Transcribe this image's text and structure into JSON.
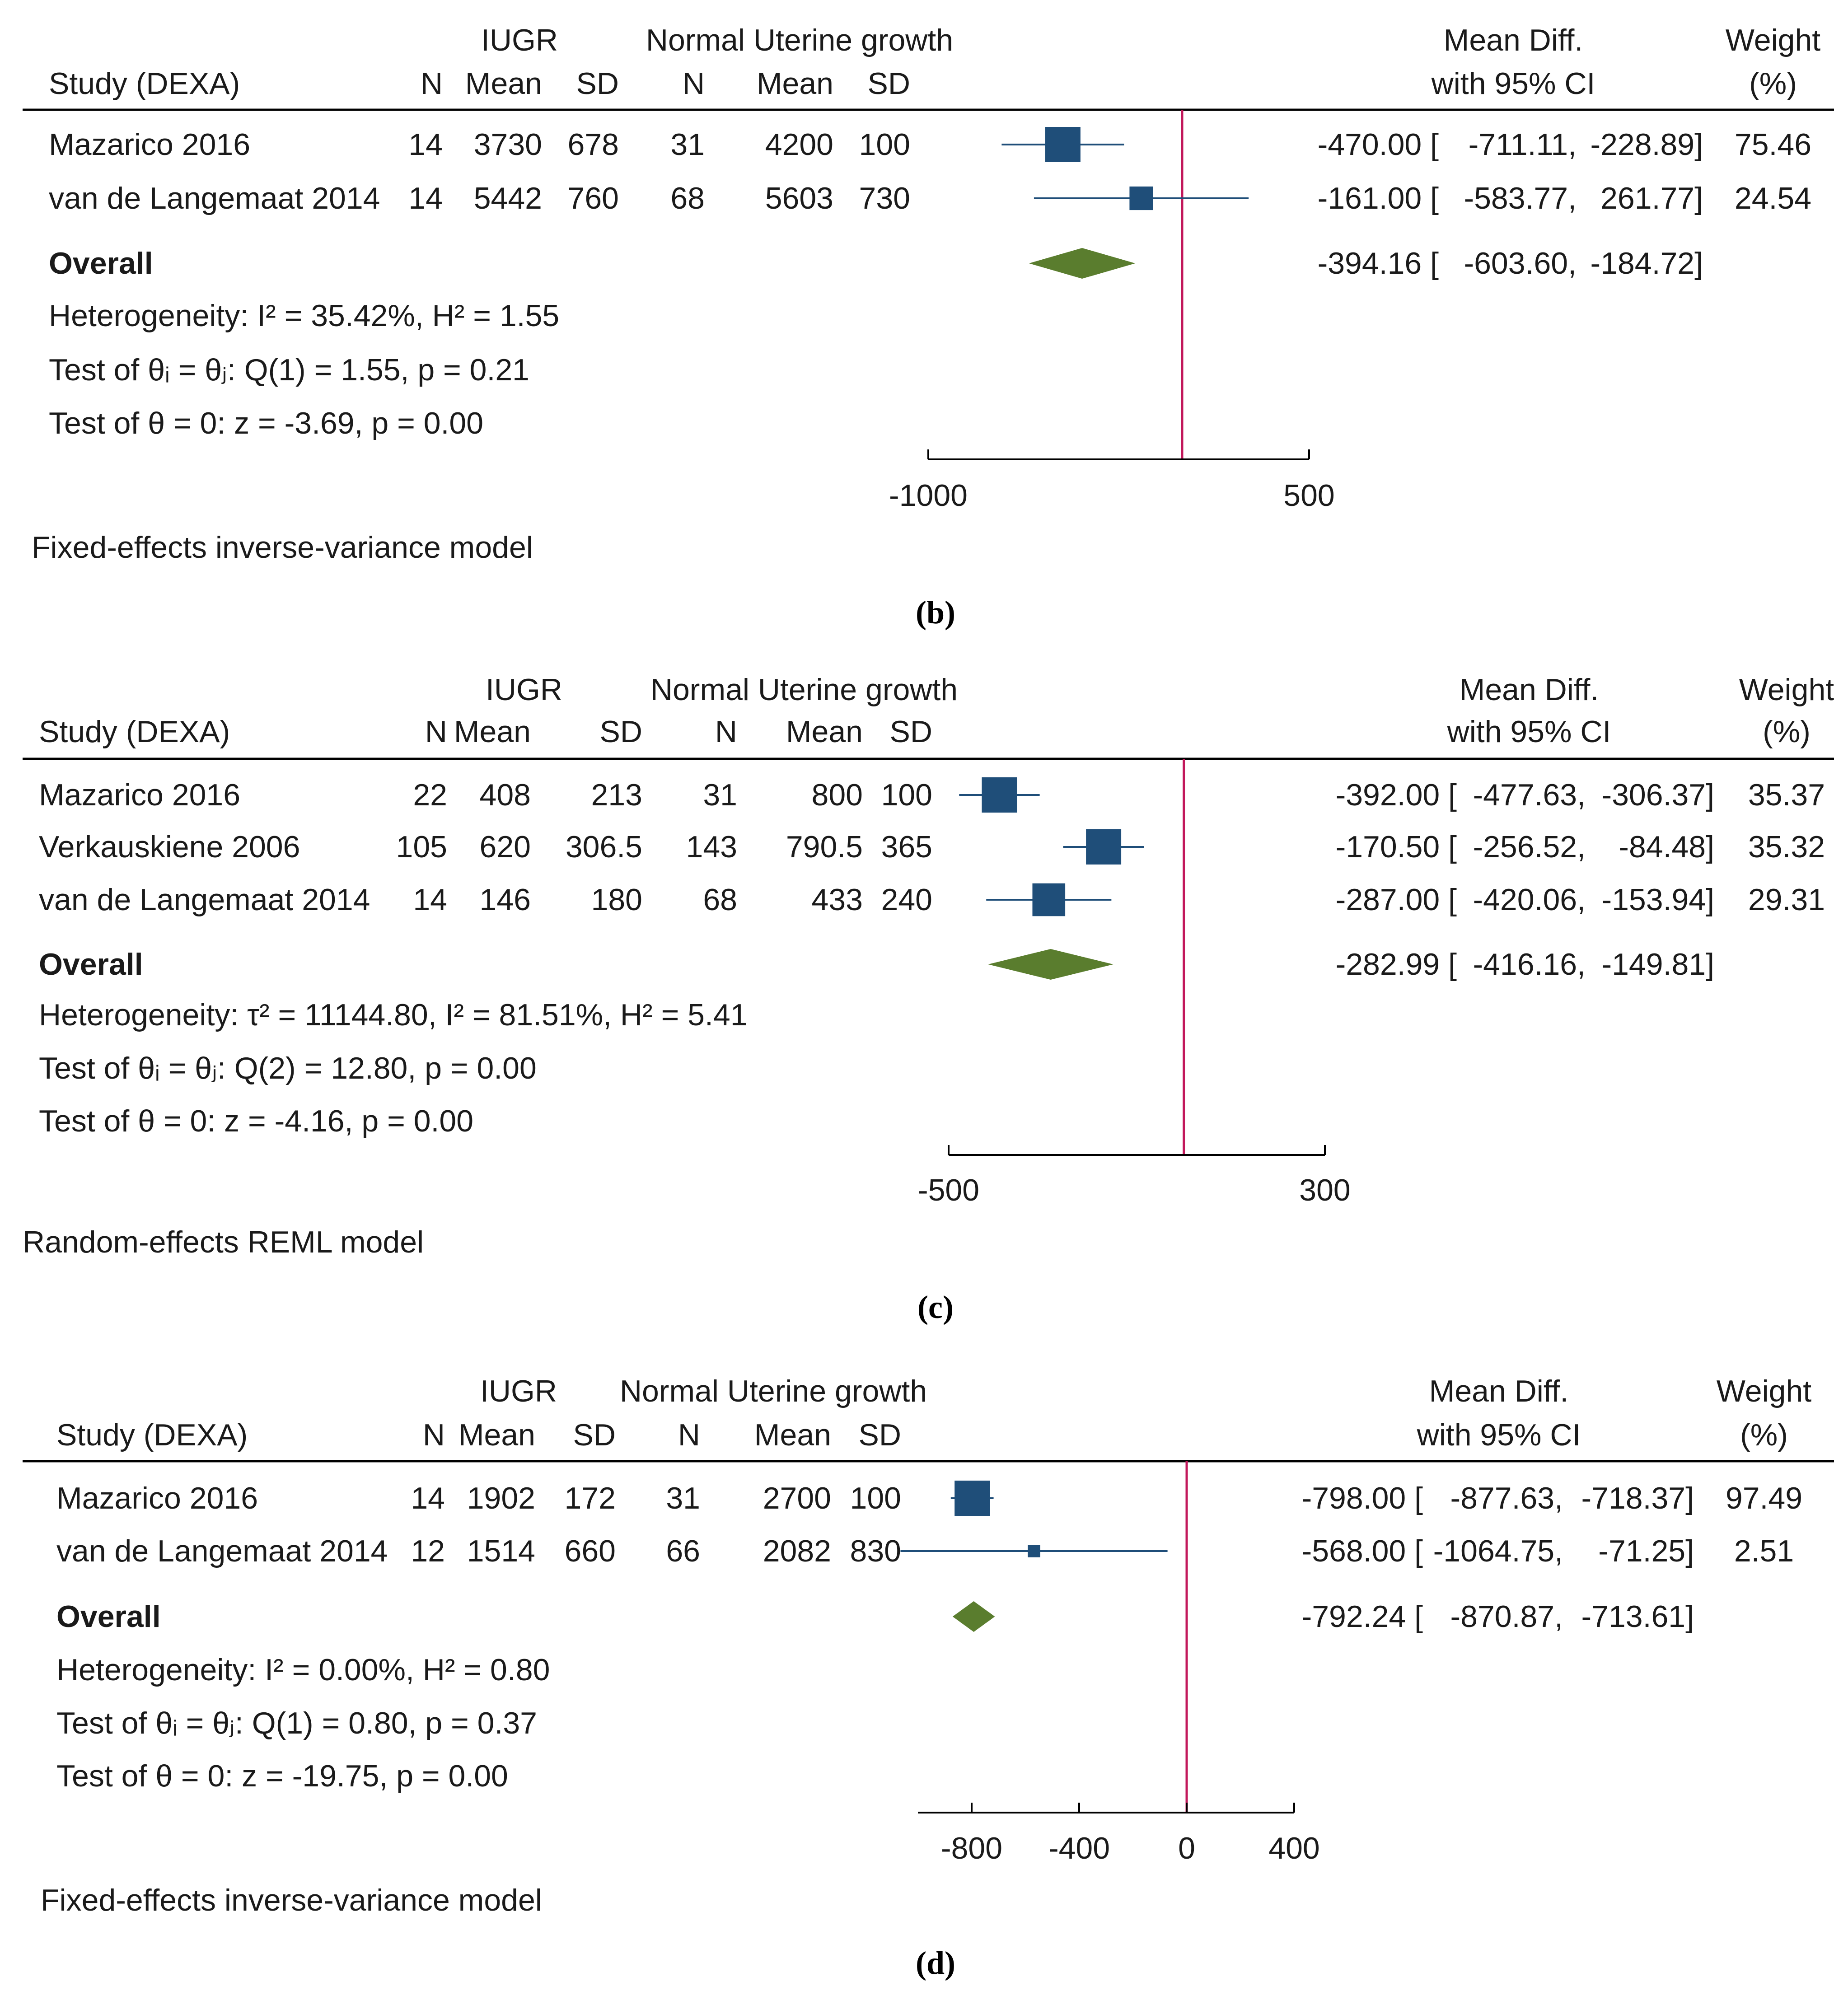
{
  "colors": {
    "marker": "#1f4e79",
    "diamond": "#5a7d2e",
    "null_line": "#c2185b",
    "text": "#1a1a1a",
    "rule": "#000000"
  },
  "chart_data": [
    {
      "type": "forest",
      "caption": "(b)",
      "headers": {
        "study": "Study (DEXA)",
        "group1": "IUGR",
        "group2": "Normal Uterine growth",
        "n": "N",
        "mean": "Mean",
        "sd": "SD",
        "effect_line1": "Mean Diff.",
        "effect_line2": "with 95% CI",
        "weight_line1": "Weight",
        "weight_line2": "(%)"
      },
      "studies": [
        {
          "name": "Mazarico 2016",
          "n1": "14",
          "mean1": "3730",
          "sd1": "678",
          "n2": "31",
          "mean2": "4200",
          "sd2": "100",
          "estimate": -470.0,
          "ci_low": -711.11,
          "ci_high": -228.89,
          "effect": "-470.00 [",
          "lo": "-711.11,",
          "hi": "-228.89]",
          "weight": "75.46"
        },
        {
          "name": "van de Langemaat 2014",
          "n1": "14",
          "mean1": "5442",
          "sd1": "760",
          "n2": "68",
          "mean2": "5603",
          "sd2": "730",
          "estimate": -161.0,
          "ci_low": -583.77,
          "ci_high": 261.77,
          "effect": "-161.00 [",
          "lo": "-583.77,",
          "hi": "261.77]",
          "weight": "24.54"
        }
      ],
      "overall": {
        "label": "Overall",
        "estimate": -394.16,
        "ci_low": -603.6,
        "ci_high": -184.72,
        "effect": "-394.16 [",
        "lo": "-603.60,",
        "hi": "-184.72]"
      },
      "stats": [
        "Heterogeneity: I² = 35.42%, H² = 1.55",
        "Test of θᵢ = θⱼ: Q(1) = 1.55, p = 0.21",
        "Test of θ = 0: z = -3.69, p = 0.00"
      ],
      "axis": {
        "min": -1000,
        "max": 500,
        "ticks": [
          -1000,
          500
        ],
        "tick_labels": [
          "-1000",
          "500"
        ],
        "null": 0
      },
      "model": "Fixed-effects inverse-variance model"
    },
    {
      "type": "forest",
      "caption": "(c)",
      "headers": {
        "study": "Study (DEXA)",
        "group1": "IUGR",
        "group2": "Normal Uterine growth",
        "n": "N",
        "mean": "Mean",
        "sd": "SD",
        "effect_line1": "Mean Diff.",
        "effect_line2": "with 95% CI",
        "weight_line1": "Weight",
        "weight_line2": "(%)"
      },
      "studies": [
        {
          "name": "Mazarico 2016",
          "n1": "22",
          "mean1": "408",
          "sd1": "213",
          "n2": "31",
          "mean2": "800",
          "sd2": "100",
          "estimate": -392.0,
          "ci_low": -477.63,
          "ci_high": -306.37,
          "effect": "-392.00 [",
          "lo": "-477.63,",
          "hi": "-306.37]",
          "weight": "35.37"
        },
        {
          "name": "Verkauskiene 2006",
          "n1": "105",
          "mean1": "620",
          "sd1": "306.5",
          "n2": "143",
          "mean2": "790.5",
          "sd2": "365",
          "estimate": -170.5,
          "ci_low": -256.52,
          "ci_high": -84.48,
          "effect": "-170.50 [",
          "lo": "-256.52,",
          "hi": "-84.48]",
          "weight": "35.32"
        },
        {
          "name": "van de Langemaat 2014",
          "n1": "14",
          "mean1": "146",
          "sd1": "180",
          "n2": "68",
          "mean2": "433",
          "sd2": "240",
          "estimate": -287.0,
          "ci_low": -420.06,
          "ci_high": -153.94,
          "effect": "-287.00 [",
          "lo": "-420.06,",
          "hi": "-153.94]",
          "weight": "29.31"
        }
      ],
      "overall": {
        "label": "Overall",
        "estimate": -282.99,
        "ci_low": -416.16,
        "ci_high": -149.81,
        "effect": "-282.99 [",
        "lo": "-416.16,",
        "hi": "-149.81]"
      },
      "stats": [
        "Heterogeneity: τ² = 11144.80, I² = 81.51%, H² = 5.41",
        "Test of θᵢ = θⱼ: Q(2) = 12.80, p = 0.00",
        "Test of θ = 0: z = -4.16, p = 0.00"
      ],
      "axis": {
        "min": -500,
        "max": 300,
        "ticks": [
          -500,
          300
        ],
        "tick_labels": [
          "-500",
          "300"
        ],
        "null": 0
      },
      "model": "Random-effects REML model"
    },
    {
      "type": "forest",
      "caption": "(d)",
      "headers": {
        "study": "Study (DEXA)",
        "group1": "IUGR",
        "group2": "Normal Uterine growth",
        "n": "N",
        "mean": "Mean",
        "sd": "SD",
        "effect_line1": "Mean Diff.",
        "effect_line2": "with 95% CI",
        "weight_line1": "Weight",
        "weight_line2": "(%)"
      },
      "studies": [
        {
          "name": "Mazarico 2016",
          "n1": "14",
          "mean1": "1902",
          "sd1": "172",
          "n2": "31",
          "mean2": "2700",
          "sd2": "100",
          "estimate": -798.0,
          "ci_low": -877.63,
          "ci_high": -718.37,
          "effect": "-798.00 [",
          "lo": "-877.63,",
          "hi": "-718.37]",
          "weight": "97.49"
        },
        {
          "name": "van de Langemaat 2014",
          "n1": "12",
          "mean1": "1514",
          "sd1": "660",
          "n2": "66",
          "mean2": "2082",
          "sd2": "830",
          "estimate": -568.0,
          "ci_low": -1064.75,
          "ci_high": -71.25,
          "effect": "-568.00 [",
          "lo": "-1064.75,",
          "hi": "-71.25]",
          "weight": "2.51"
        }
      ],
      "overall": {
        "label": "Overall",
        "estimate": -792.24,
        "ci_low": -870.87,
        "ci_high": -713.61,
        "effect": "-792.24 [",
        "lo": "-870.87,",
        "hi": "-713.61]"
      },
      "stats": [
        "Heterogeneity: I² = 0.00%, H² = 0.80",
        "Test of θᵢ = θⱼ: Q(1) = 0.80, p = 0.37",
        "Test of θ = 0: z = -19.75, p = 0.00"
      ],
      "axis": {
        "min": -1000,
        "max": 400,
        "ticks": [
          -800,
          -400,
          0,
          400
        ],
        "tick_labels": [
          "-800",
          "-400",
          "0",
          "400"
        ],
        "null": 0
      },
      "model": "Fixed-effects inverse-variance model"
    }
  ]
}
